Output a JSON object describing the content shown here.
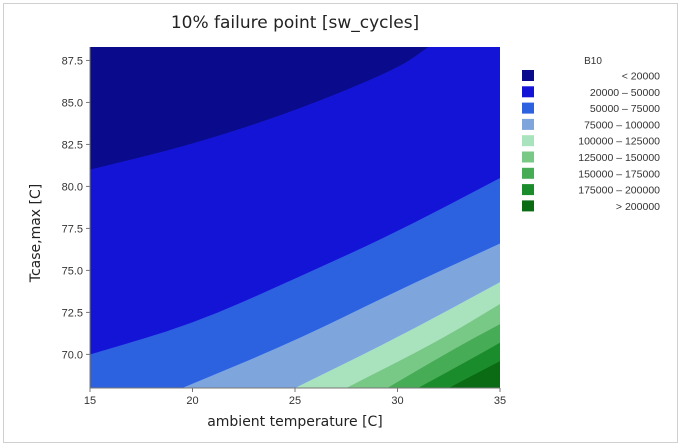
{
  "chart_data": {
    "type": "contour",
    "title": "10% failure point [sw_cycles]",
    "xlabel": "ambient temperature [C]",
    "ylabel": "Tcase,max [C]",
    "xlim": [
      15,
      35
    ],
    "ylim": [
      68,
      88.3
    ],
    "x_ticks": [
      "15",
      "20",
      "25",
      "30",
      "35"
    ],
    "x_tick_values": [
      15,
      20,
      25,
      30,
      35
    ],
    "y_ticks": [
      "70.0",
      "72.5",
      "75.0",
      "77.5",
      "80.0",
      "82.5",
      "85.0",
      "87.5"
    ],
    "y_tick_values": [
      70,
      72.5,
      75,
      77.5,
      80,
      82.5,
      85,
      87.5
    ],
    "legend": {
      "title": "B10",
      "placement": "right",
      "entries": [
        {
          "label": "<      20000",
          "color": "#0a0a8c"
        },
        {
          "label": "20000  –   50000",
          "color": "#1414d6"
        },
        {
          "label": "50000  –   75000",
          "color": "#2c62df"
        },
        {
          "label": "75000  –  100000",
          "color": "#7ea6dd"
        },
        {
          "label": "100000  –  125000",
          "color": "#a9e3bd"
        },
        {
          "label": "125000  –  150000",
          "color": "#78c986"
        },
        {
          "label": "150000  –  175000",
          "color": "#46ac56"
        },
        {
          "label": "175000  –  200000",
          "color": "#1b8c2b"
        },
        {
          "label": ">  200000",
          "color": "#0b6b14"
        }
      ]
    },
    "contour_boundaries": [
      {
        "level": 20000,
        "points": [
          [
            15,
            81
          ],
          [
            20,
            82.5
          ],
          [
            25,
            84.5
          ],
          [
            30,
            87
          ],
          [
            31.5,
            88.3
          ]
        ]
      },
      {
        "level": 50000,
        "points": [
          [
            15,
            70
          ],
          [
            20,
            71.8
          ],
          [
            25,
            74.5
          ],
          [
            30,
            77.3
          ],
          [
            35,
            80.5
          ]
        ]
      },
      {
        "level": 75000,
        "points": [
          [
            19.5,
            68
          ],
          [
            25,
            70.8
          ],
          [
            30,
            73.8
          ],
          [
            35,
            76.6
          ]
        ]
      },
      {
        "level": 100000,
        "points": [
          [
            25,
            68
          ],
          [
            30,
            71
          ],
          [
            35,
            74.3
          ]
        ]
      },
      {
        "level": 125000,
        "points": [
          [
            27.5,
            68
          ],
          [
            32,
            70.8
          ],
          [
            35,
            73
          ]
        ]
      },
      {
        "level": 150000,
        "points": [
          [
            29.5,
            68
          ],
          [
            33,
            70.5
          ],
          [
            35,
            71.8
          ]
        ]
      },
      {
        "level": 175000,
        "points": [
          [
            31,
            68
          ],
          [
            34,
            70
          ],
          [
            35,
            70.7
          ]
        ]
      },
      {
        "level": 200000,
        "points": [
          [
            32.5,
            68
          ],
          [
            35,
            69.6
          ]
        ]
      }
    ]
  }
}
